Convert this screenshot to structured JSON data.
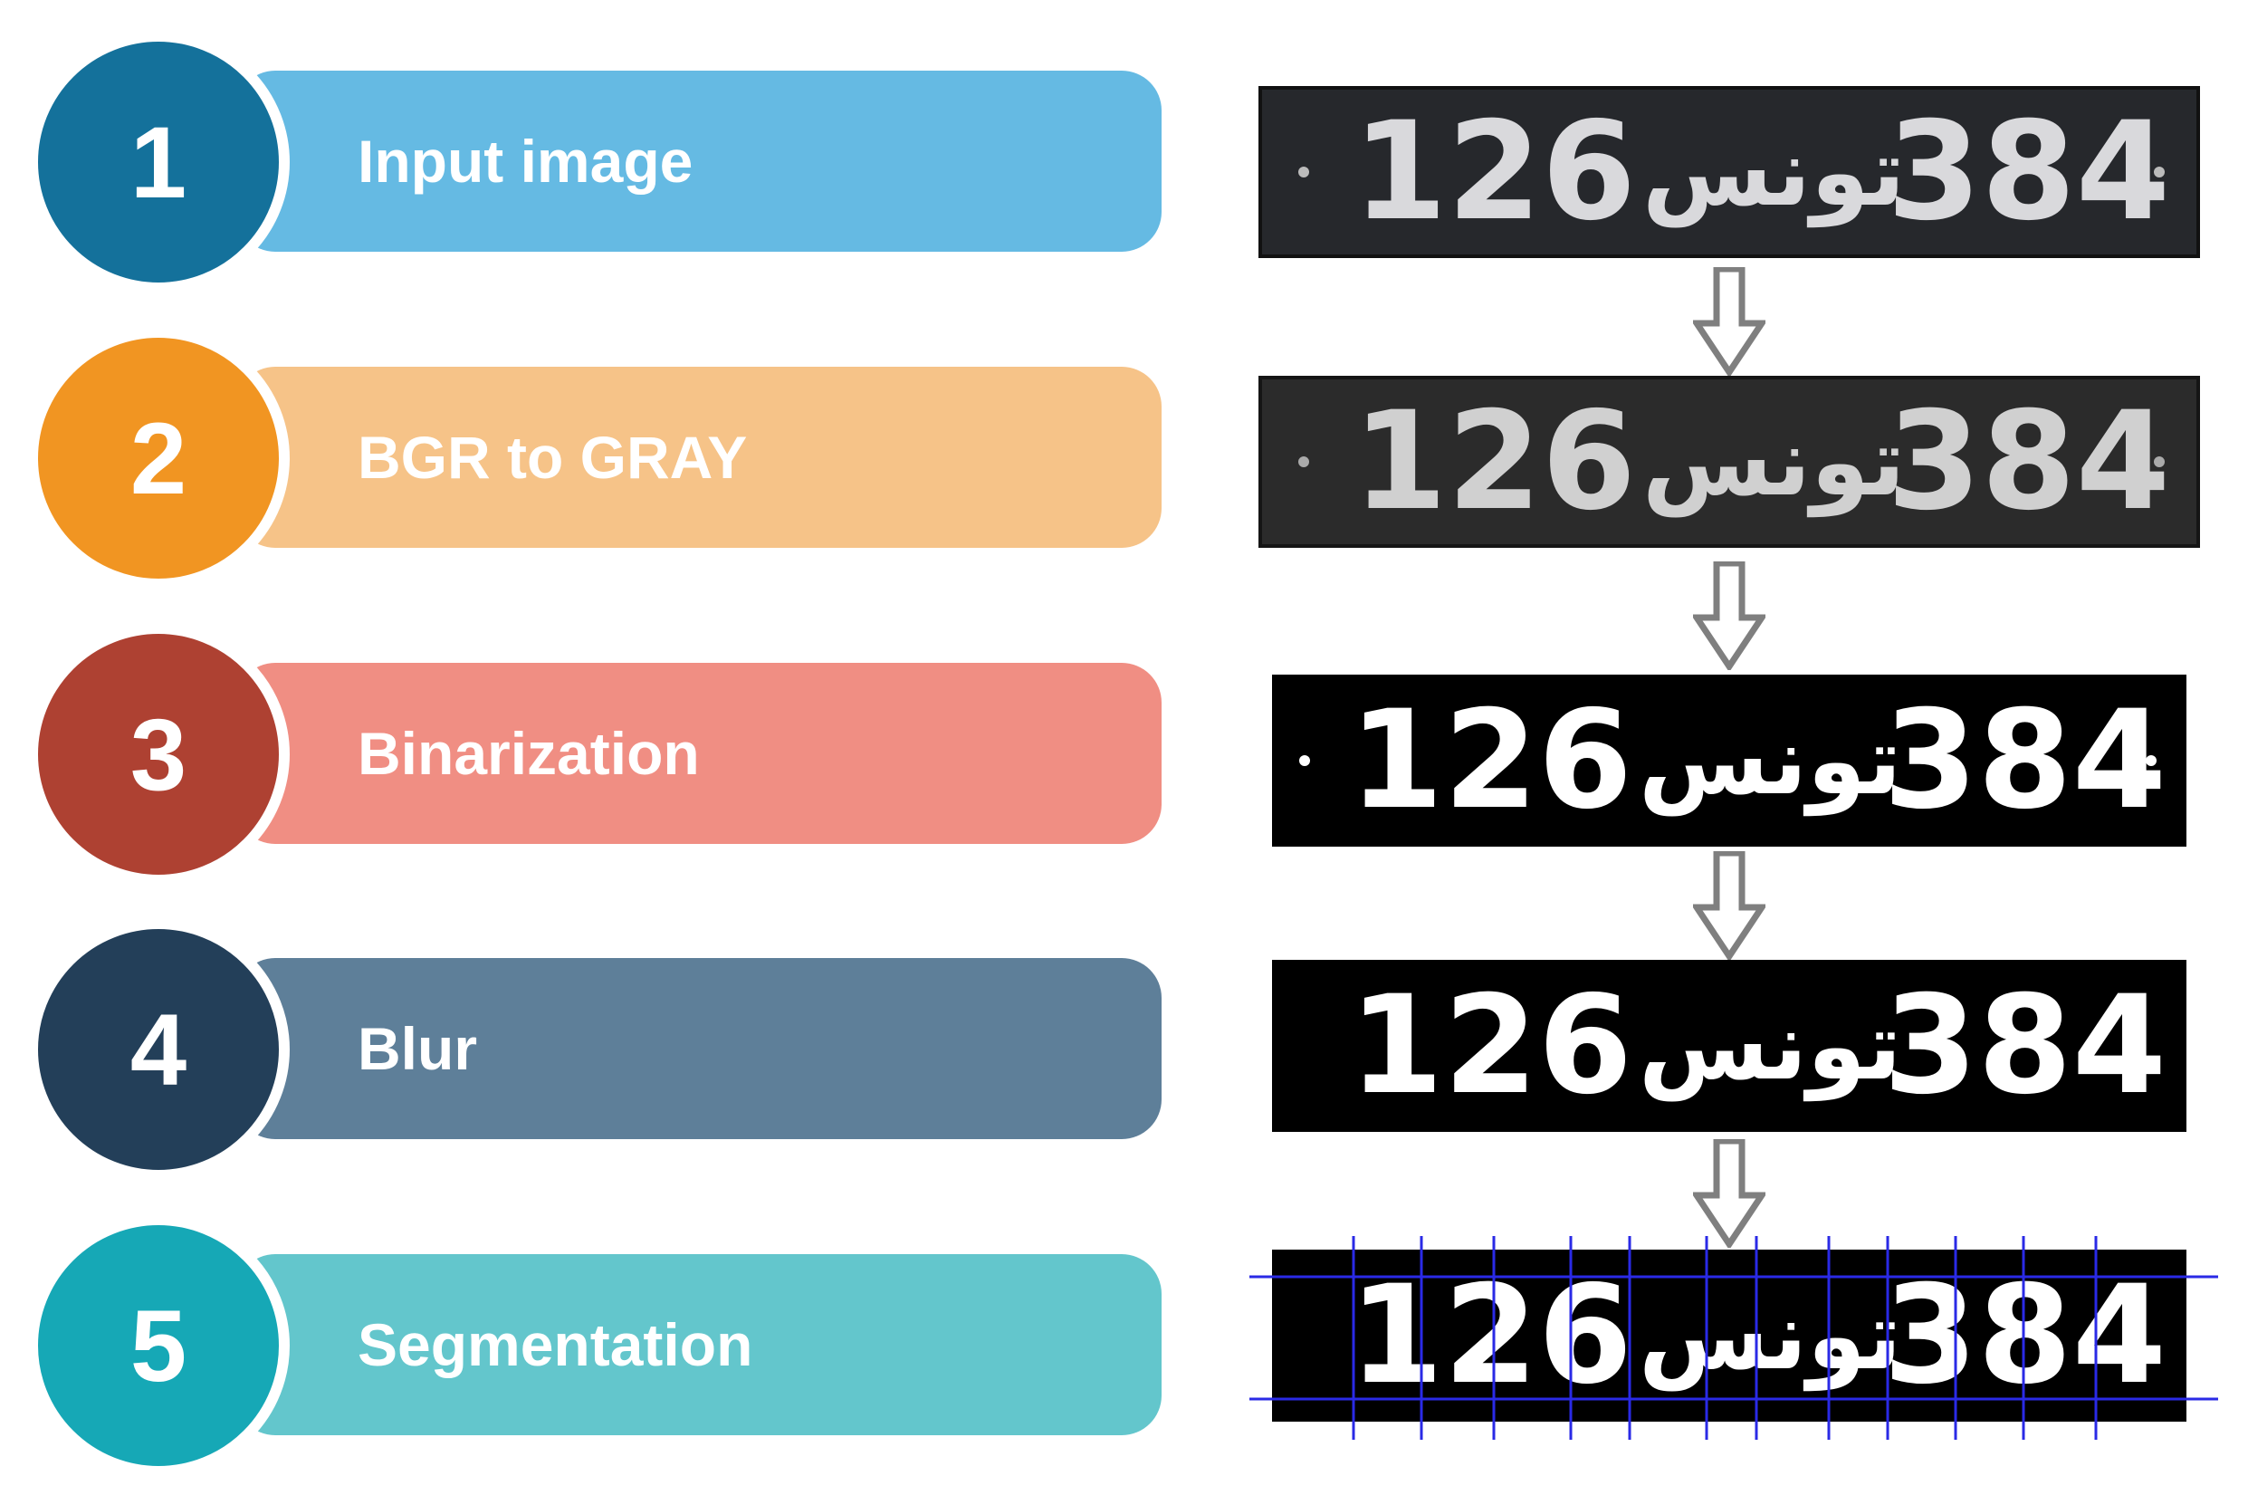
{
  "steps": [
    {
      "number": "1",
      "label": "Input image",
      "circle_color": "#14719b",
      "pill_color": "#65bae3"
    },
    {
      "number": "2",
      "label": "BGR to GRAY",
      "circle_color": "#f19522",
      "pill_color": "#f6c388"
    },
    {
      "number": "3",
      "label": "Binarization",
      "circle_color": "#ae4132",
      "pill_color": "#f08e83"
    },
    {
      "number": "4",
      "label": "Blur",
      "circle_color": "#233f59",
      "pill_color": "#5e7f99"
    },
    {
      "number": "5",
      "label": "Segmentation",
      "circle_color": "#16a8b6",
      "pill_color": "#63c6cc"
    }
  ],
  "plate": {
    "left_number": "126",
    "arabic_text": "تونس",
    "right_number": "384"
  },
  "colors": {
    "arrow": "#7f7f7f",
    "segmentation_lines": "#2a2ae6"
  }
}
